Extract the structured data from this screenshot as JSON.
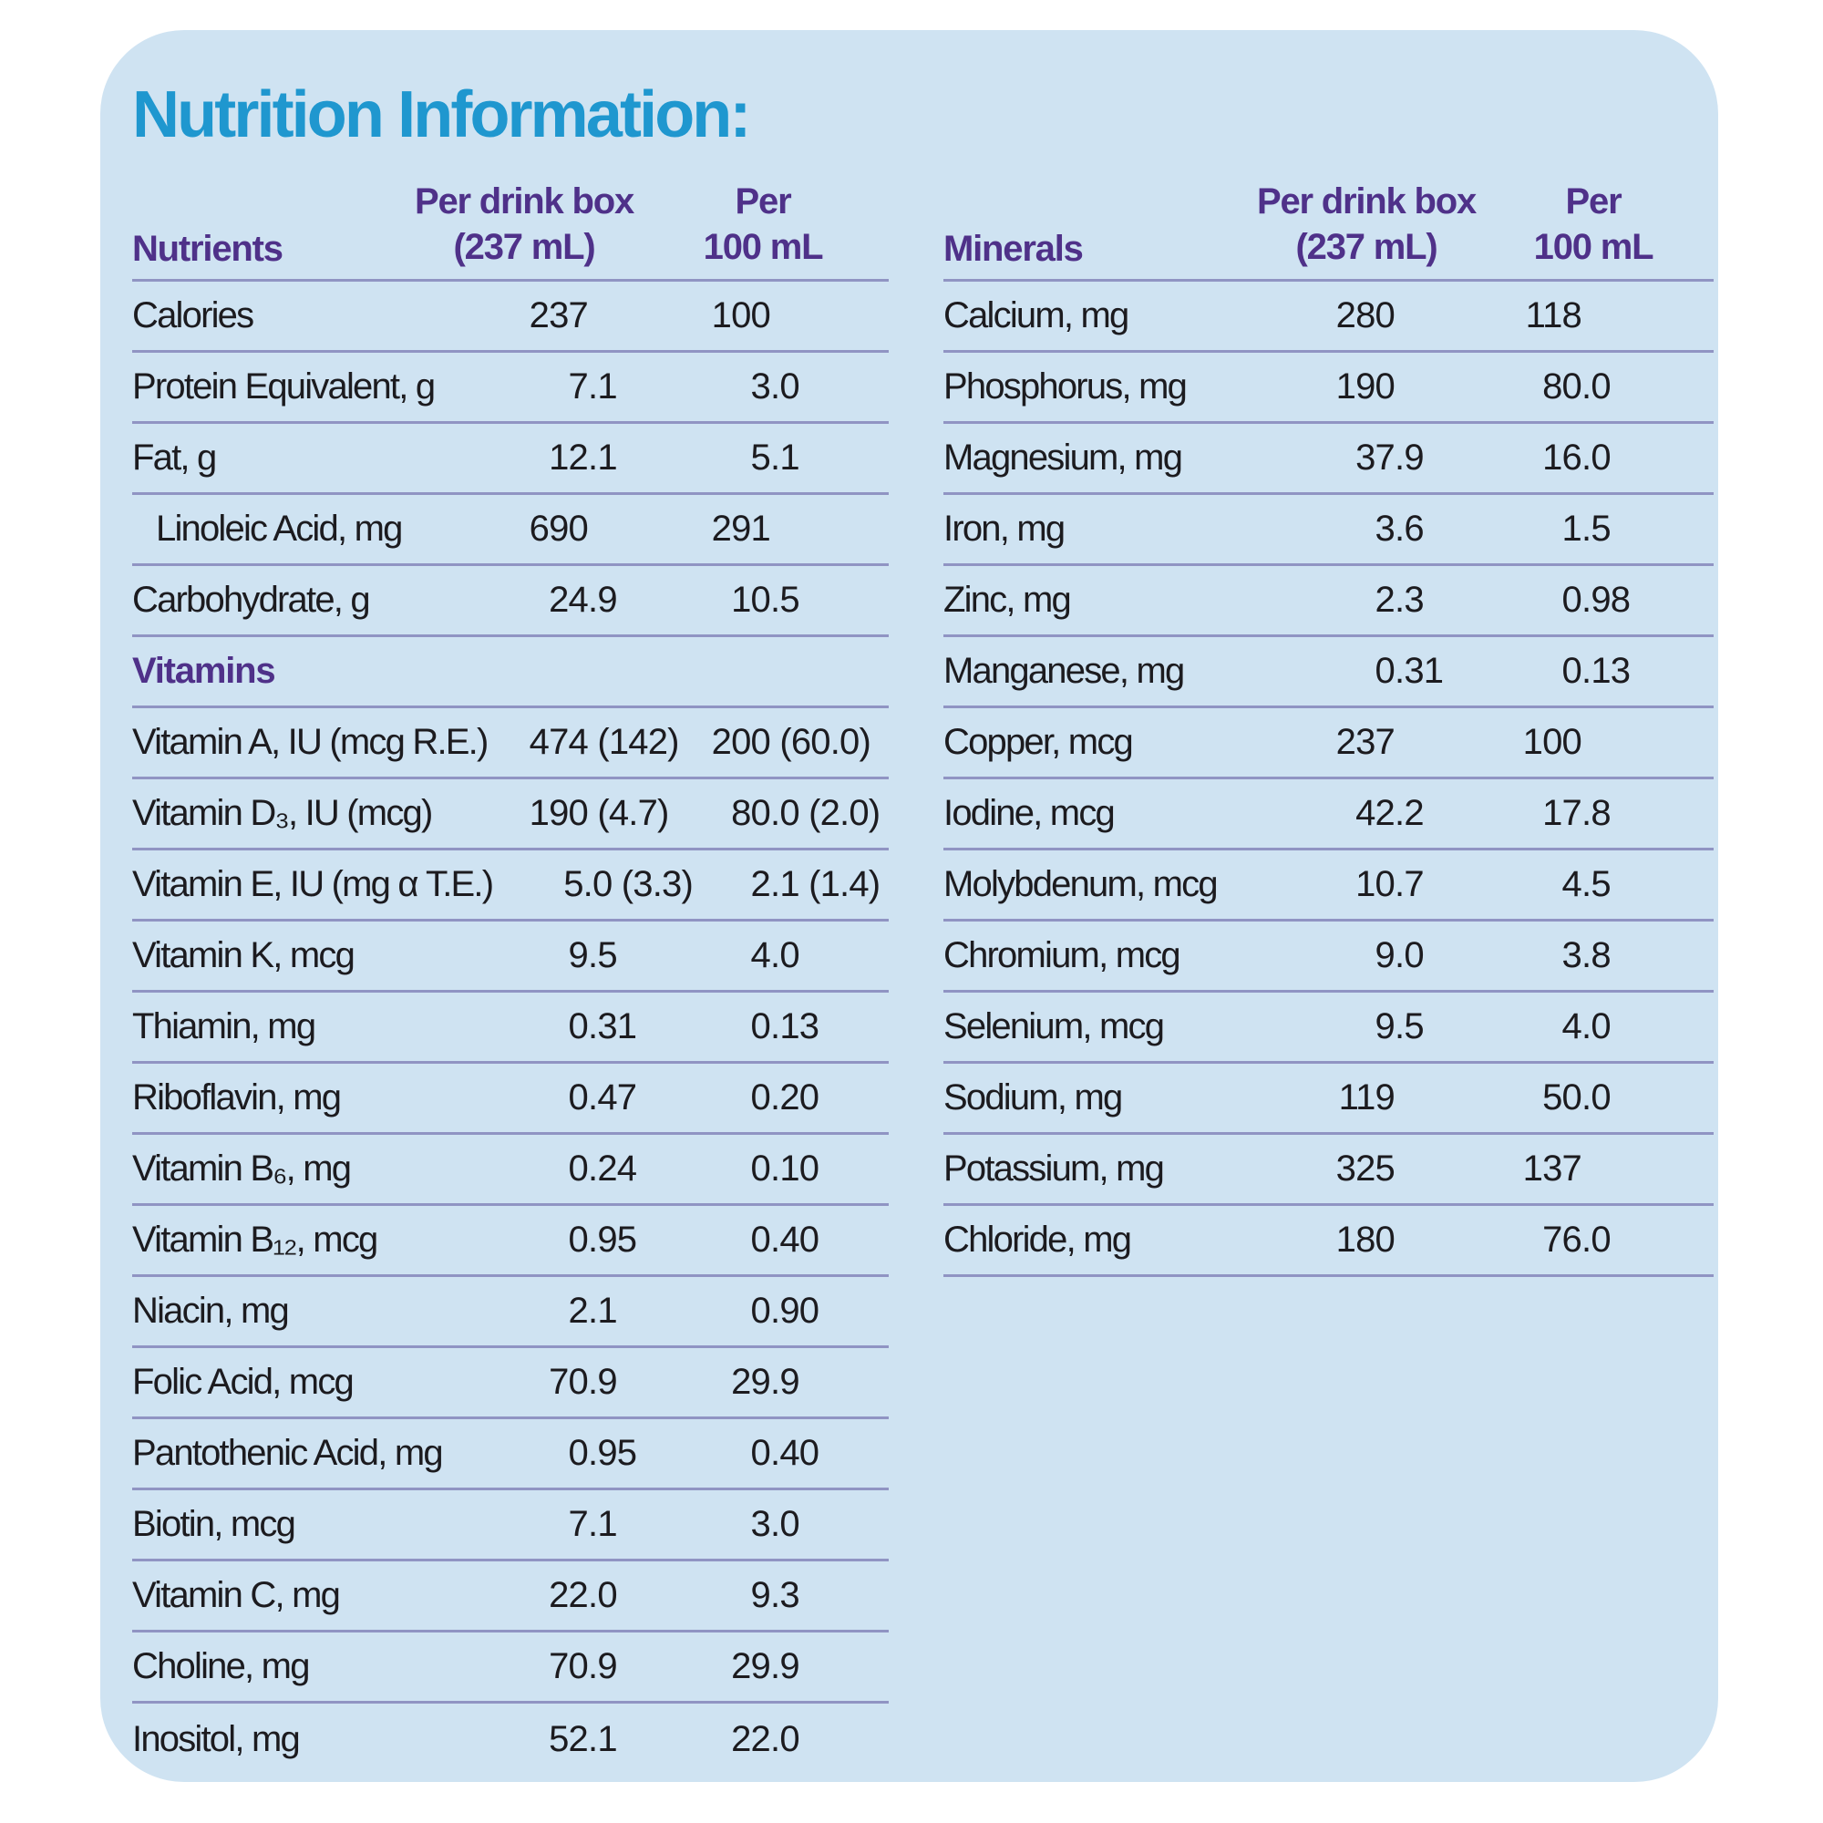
{
  "title": "Nutrition Information:",
  "colors": {
    "page_bg": "#ffffff",
    "card_bg": "#cfe3f2",
    "title": "#1f97cf",
    "header": "#4f3189",
    "rule": "#9094c3",
    "text": "#1c1b1f"
  },
  "tables": [
    {
      "name": "nutrients",
      "col1_header": "Nutrients",
      "col2_header_line1": "Per drink box",
      "col2_header_line2": "(237 mL)",
      "col3_header_line1": "Per",
      "col3_header_line2": "100 mL",
      "rows": [
        {
          "label": "Calories",
          "per_box": "237",
          "per_100ml": "100"
        },
        {
          "label": "Protein Equivalent, g",
          "per_box": "7.1",
          "per_100ml": "3.0"
        },
        {
          "label": "Fat, g",
          "per_box": "12.1",
          "per_100ml": "5.1"
        },
        {
          "label": "Linoleic Acid, mg",
          "indent": true,
          "per_box": "690",
          "per_100ml": "291"
        },
        {
          "label": "Carbohydrate, g",
          "per_box": "24.9",
          "per_100ml": "10.5"
        },
        {
          "section": "Vitamins"
        },
        {
          "label": "Vitamin A, IU (mcg R.E.)",
          "per_box": "474 (142)",
          "per_100ml": "200 (60.0)"
        },
        {
          "label": "Vitamin D₃, IU (mcg)",
          "per_box": "190 (4.7)",
          "per_100ml": "80.0 (2.0)"
        },
        {
          "label": "Vitamin E, IU (mg α T.E.)",
          "per_box": "5.0 (3.3)",
          "per_100ml": "2.1 (1.4)"
        },
        {
          "label": "Vitamin K, mcg",
          "per_box": "9.5",
          "per_100ml": "4.0"
        },
        {
          "label": "Thiamin, mg",
          "per_box": "0.31",
          "per_100ml": "0.13"
        },
        {
          "label": "Riboflavin, mg",
          "per_box": "0.47",
          "per_100ml": "0.20"
        },
        {
          "label": "Vitamin B₆, mg",
          "per_box": "0.24",
          "per_100ml": "0.10"
        },
        {
          "label": "Vitamin B₁₂, mcg",
          "per_box": "0.95",
          "per_100ml": "0.40"
        },
        {
          "label": "Niacin, mg",
          "per_box": "2.1",
          "per_100ml": "0.90"
        },
        {
          "label": "Folic Acid, mcg",
          "per_box": "70.9",
          "per_100ml": "29.9"
        },
        {
          "label": "Pantothenic Acid, mg",
          "per_box": "0.95",
          "per_100ml": "0.40"
        },
        {
          "label": "Biotin, mcg",
          "per_box": "7.1",
          "per_100ml": "3.0"
        },
        {
          "label": "Vitamin C, mg",
          "per_box": "22.0",
          "per_100ml": "9.3"
        },
        {
          "label": "Choline, mg",
          "per_box": "70.9",
          "per_100ml": "29.9"
        },
        {
          "label": "Inositol, mg",
          "per_box": "52.1",
          "per_100ml": "22.0",
          "no_rule": true
        }
      ]
    },
    {
      "name": "minerals",
      "col1_header": "Minerals",
      "col2_header_line1": "Per drink box",
      "col2_header_line2": "(237 mL)",
      "col3_header_line1": "Per",
      "col3_header_line2": "100 mL",
      "rows": [
        {
          "label": "Calcium, mg",
          "per_box": "280",
          "per_100ml": "118"
        },
        {
          "label": "Phosphorus, mg",
          "per_box": "190",
          "per_100ml": "80.0"
        },
        {
          "label": "Magnesium, mg",
          "per_box": "37.9",
          "per_100ml": "16.0"
        },
        {
          "label": "Iron, mg",
          "per_box": "3.6",
          "per_100ml": "1.5"
        },
        {
          "label": "Zinc, mg",
          "per_box": "2.3",
          "per_100ml": "0.98"
        },
        {
          "label": "Manganese, mg",
          "per_box": "0.31",
          "per_100ml": "0.13"
        },
        {
          "label": "Copper, mcg",
          "per_box": "237",
          "per_100ml": "100"
        },
        {
          "label": "Iodine, mcg",
          "per_box": "42.2",
          "per_100ml": "17.8"
        },
        {
          "label": "Molybdenum, mcg",
          "per_box": "10.7",
          "per_100ml": "4.5"
        },
        {
          "label": "Chromium, mcg",
          "per_box": "9.0",
          "per_100ml": "3.8"
        },
        {
          "label": "Selenium, mcg",
          "per_box": "9.5",
          "per_100ml": "4.0"
        },
        {
          "label": "Sodium, mg",
          "per_box": "119",
          "per_100ml": "50.0"
        },
        {
          "label": "Potassium, mg",
          "per_box": "325",
          "per_100ml": "137"
        },
        {
          "label": "Chloride, mg",
          "per_box": "180",
          "per_100ml": "76.0"
        }
      ]
    }
  ]
}
